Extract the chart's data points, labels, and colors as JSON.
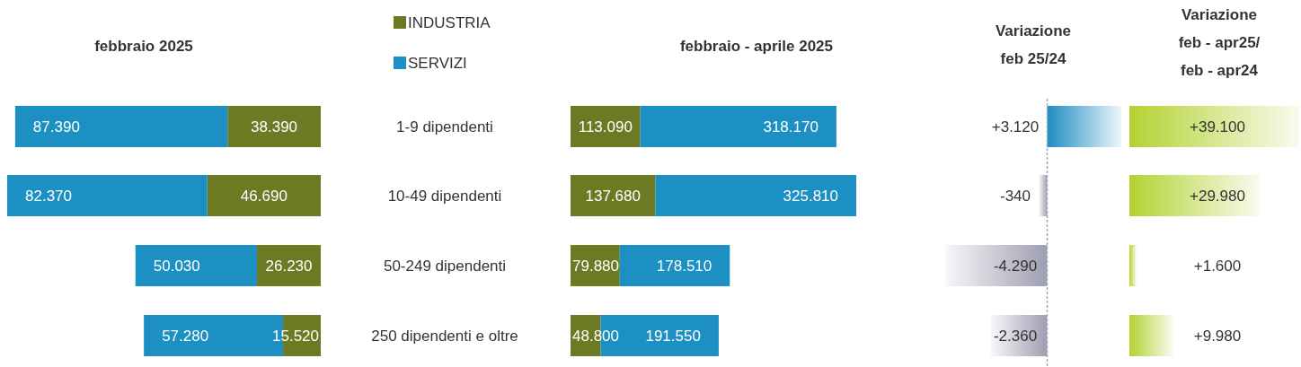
{
  "chart_data": [
    {
      "type": "bar",
      "orientation": "horizontal",
      "stacked": true,
      "title": "febbraio 2025",
      "categories": [
        "1-9 dipendenti",
        "10-49 dipendenti",
        "50-249 dipendenti",
        "250 dipendenti e oltre"
      ],
      "series": [
        {
          "color": "#6b7a23",
          "values": [
            38390,
            46690,
            26230,
            15520
          ],
          "value_labels": [
            "38.390",
            "46.690",
            "26.230",
            "15.520"
          ]
        },
        {
          "color": "#1c8fc3",
          "values": [
            87390,
            82370,
            50030,
            57280
          ],
          "value_labels": [
            "87.390",
            "82.370",
            "50.030",
            "57.280"
          ]
        }
      ]
    },
    {
      "type": "bar",
      "orientation": "horizontal",
      "stacked": true,
      "title": "febbraio  - aprile 2025",
      "categories": [
        null,
        null,
        null,
        null
      ],
      "legend": "top left",
      "series": [
        {
          "name": "INDUSTRIA",
          "color": "#6b7a23",
          "values": [
            113090,
            137680,
            79880,
            48800
          ],
          "value_labels": [
            "113.090",
            "137.680",
            "79.880",
            "48.800"
          ]
        },
        {
          "name": "SERVIZI",
          "color": "#1c8fc3",
          "values": [
            318170,
            325810,
            178510,
            191550
          ],
          "value_labels": [
            "318.170",
            "325.810",
            "178.510",
            "191.550"
          ]
        }
      ]
    },
    {
      "type": "bar",
      "orientation": "horizontal",
      "title": "Variazione\nfeb 25/24",
      "categories": [
        null,
        null,
        null,
        null
      ],
      "values": [
        3120,
        -340,
        -4290,
        -2360
      ],
      "value_labels": [
        "+3.120",
        "-340",
        "-4.290",
        "-2.360"
      ],
      "colors": [
        "#1f8dc2",
        "#9e9eb2",
        "#9e9eb2",
        "#9e9eb2"
      ],
      "ref_lines": [
        {
          "axis": "x",
          "value": 0,
          "color": "#a8a8b8",
          "line_style": "dashed"
        }
      ]
    },
    {
      "type": "bar",
      "orientation": "horizontal",
      "title": "Variazione\nfeb - apr25/\nfeb - apr24",
      "categories": [
        null,
        null,
        null,
        null
      ],
      "values": [
        39100,
        29980,
        1600,
        9980
      ],
      "value_labels": [
        "+39.100",
        "+29.980",
        "+1.600",
        "+9.980"
      ],
      "colors": [
        "#b3d232",
        "#b3d232",
        "#b3d232",
        "#b3d232"
      ]
    }
  ]
}
